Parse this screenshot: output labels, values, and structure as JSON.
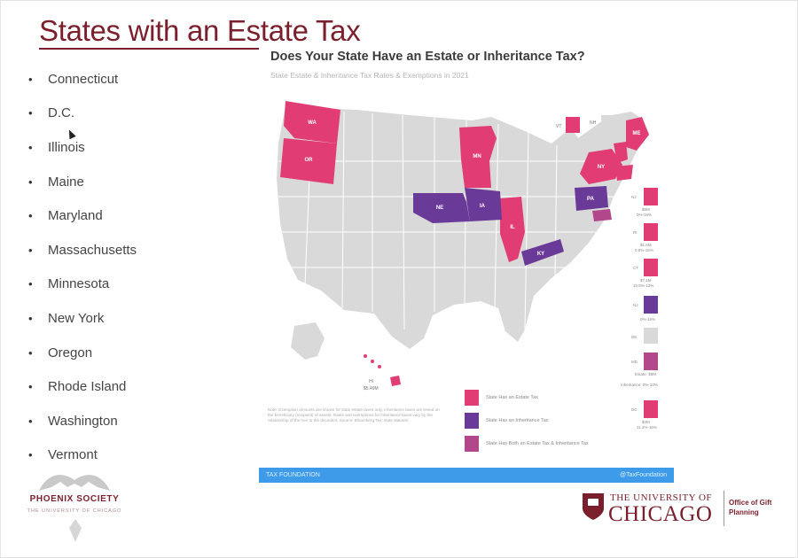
{
  "slide": {
    "title": "States with an Estate Tax",
    "bullet_glyph": "•",
    "states": [
      "Connecticut",
      "D.C.",
      "Illinois",
      "Maine",
      "Maryland",
      "Massachusetts",
      "Minnesota",
      "New York",
      "Oregon",
      "Rhode Island",
      "Washington",
      "Vermont"
    ]
  },
  "infographic": {
    "title": "Does Your State Have an Estate or Inheritance Tax?",
    "subtitle": "State Estate & Inheritance Tax Rates & Exemptions in 2021",
    "colors": {
      "estate": "#e23c75",
      "inheritance": "#6a3a98",
      "both": "#b3478c",
      "none": "#d9d9d9",
      "lines": "#ffffff"
    },
    "legend": [
      {
        "label": "State Has an Estate Tax",
        "color": "#e23c75"
      },
      {
        "label": "State Has an Inheritance Tax",
        "color": "#6a3a98"
      },
      {
        "label": "State Has Both an Estate Tax & Inheritance Tax",
        "color": "#b3478c"
      }
    ],
    "map_labels": {
      "wa": "WA",
      "or": "OR",
      "mn": "MN",
      "ne": "NE",
      "ia": "IA",
      "il": "IL",
      "ky": "KY",
      "pa": "PA",
      "ny": "NY",
      "me": "ME",
      "vt": "VT",
      "nh": "NH",
      "hi": "HI",
      "hi_value": "$5.49M"
    },
    "sidebar_boxes": [
      {
        "label": "NJ",
        "value": "$5M",
        "rate": "0%-16%"
      },
      {
        "label": "RI",
        "value": "$1.6M",
        "rate": "0.8%-16%"
      },
      {
        "label": "CT",
        "value": "$7.1M",
        "rate": "10.8%-12%"
      },
      {
        "label": "NJ",
        "value": "",
        "rate": "0%-16%"
      },
      {
        "label": "DE",
        "value": "",
        "rate": ""
      },
      {
        "label": "MD",
        "value": "Estate: $5M",
        "rate": "Inheritance: 0%-10%"
      },
      {
        "label": "DC",
        "value": "$4M",
        "rate": "11.2%-16%"
      }
    ],
    "footnote": "Note: Exemption amounts are shown for state estate taxes only. Inheritance taxes are levied on the beneficiary (recipient) of assets. Rates and exemptions for inheritance taxes vary by the relationship of the heir to the decedent. Source: Bloomberg Tax; state statutes.",
    "bar_left": "TAX FOUNDATION",
    "bar_right": "@TaxFoundation"
  },
  "logos": {
    "phoenix_name": "PHOENIX SOCIETY",
    "phoenix_sub": "THE UNIVERSITY OF CHICAGO",
    "uc_the": "THE UNIVERSITY OF",
    "uc_chicago": "CHICAGO",
    "uc_office": "Office of Gift Planning"
  }
}
